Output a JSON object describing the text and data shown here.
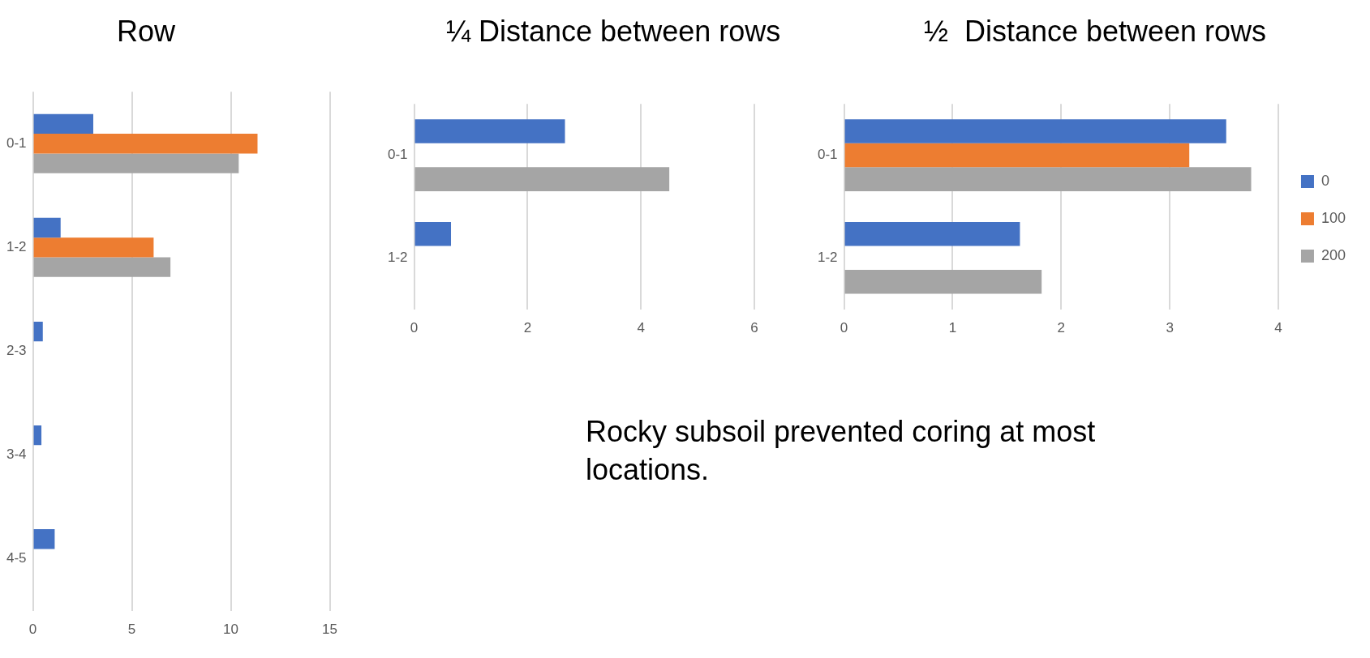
{
  "chart_data": [
    {
      "type": "bar",
      "orientation": "horizontal",
      "title": "Row",
      "categories": [
        "0-1",
        "1-2",
        "2-3",
        "3-4",
        "4-5"
      ],
      "series": [
        {
          "color": "#4472c4",
          "values": [
            3.05,
            1.4,
            0.5,
            0.43,
            1.1
          ]
        },
        {
          "color": "#ed7d31",
          "values": [
            11.35,
            6.1,
            null,
            null,
            null
          ]
        },
        {
          "color": "#a5a5a5",
          "values": [
            10.4,
            6.95,
            null,
            null,
            null
          ]
        }
      ],
      "xlim": [
        0,
        15
      ],
      "xticks": [
        0,
        5,
        10,
        15
      ],
      "grid": "x",
      "legend": false
    },
    {
      "type": "bar",
      "orientation": "horizontal",
      "title": "¼ Distance between rows",
      "categories": [
        "0-1",
        "1-2"
      ],
      "series": [
        {
          "color": "#4472c4",
          "values": [
            2.66,
            0.65
          ]
        },
        {
          "color": "#ed7d31",
          "values": [
            null,
            null
          ]
        },
        {
          "color": "#a5a5a5",
          "values": [
            4.5,
            null
          ]
        }
      ],
      "xlim": [
        0,
        6
      ],
      "xticks": [
        0,
        2,
        4,
        6
      ],
      "grid": "x",
      "legend": false,
      "annotations": [
        "Rocky subsoil prevented coring at most locations."
      ]
    },
    {
      "type": "bar",
      "orientation": "horizontal",
      "title": "½  Distance between rows",
      "categories": [
        "0-1",
        "1-2"
      ],
      "series": [
        {
          "name": "0",
          "color": "#4472c4",
          "values": [
            3.52,
            1.62
          ]
        },
        {
          "name": "100",
          "color": "#ed7d31",
          "values": [
            3.18,
            null
          ]
        },
        {
          "name": "200",
          "color": "#a5a5a5",
          "values": [
            3.75,
            1.82
          ]
        }
      ],
      "xlim": [
        0,
        4
      ],
      "xticks": [
        0,
        1,
        2,
        3,
        4
      ],
      "grid": "x",
      "legend": "right"
    }
  ]
}
